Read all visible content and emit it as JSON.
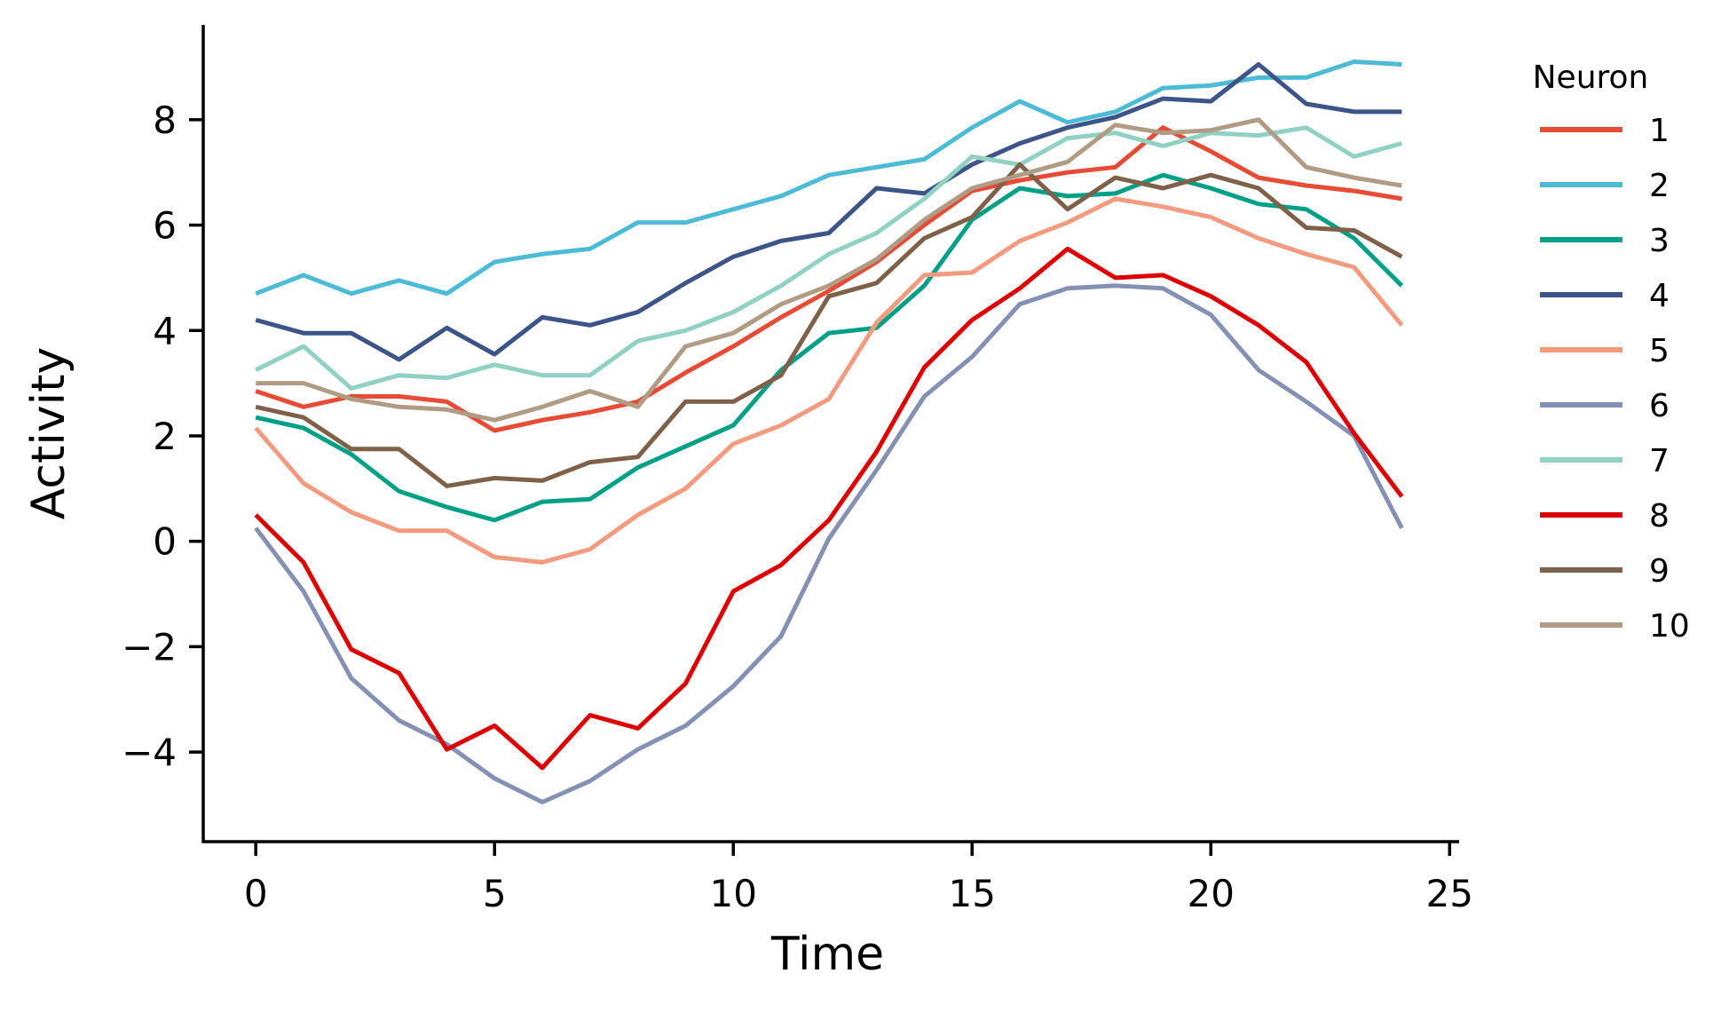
{
  "chart_data": {
    "type": "line",
    "xlabel": "Time",
    "ylabel": "Activity",
    "xlim": [
      -1.1,
      25.2
    ],
    "ylim": [
      -5.7,
      9.8
    ],
    "x_ticks": [
      0,
      5,
      10,
      15,
      20,
      25
    ],
    "x_tick_labels": [
      "0",
      "5",
      "10",
      "15",
      "20",
      "25"
    ],
    "y_ticks": [
      -4,
      -2,
      0,
      2,
      4,
      6,
      8
    ],
    "y_tick_labels": [
      "−4",
      "−2",
      "0",
      "2",
      "4",
      "6",
      "8"
    ],
    "grid": false,
    "legend": {
      "title": "Neuron",
      "placement": "outside-right"
    },
    "x": [
      0,
      1,
      2,
      3,
      4,
      5,
      6,
      7,
      8,
      9,
      10,
      11,
      12,
      13,
      14,
      15,
      16,
      17,
      18,
      19,
      20,
      21,
      22,
      23,
      24
    ],
    "series": [
      {
        "name": "1",
        "color": "#e64b35",
        "values": [
          2.85,
          2.55,
          2.75,
          2.75,
          2.65,
          2.1,
          2.3,
          2.45,
          2.65,
          3.2,
          3.7,
          4.25,
          4.75,
          5.3,
          6.0,
          6.65,
          6.85,
          7.0,
          7.1,
          7.85,
          7.4,
          6.9,
          6.75,
          6.65,
          6.5
        ]
      },
      {
        "name": "2",
        "color": "#4dbbd5",
        "values": [
          4.7,
          5.05,
          4.7,
          4.95,
          4.7,
          5.3,
          5.45,
          5.55,
          6.05,
          6.05,
          6.3,
          6.55,
          6.95,
          7.1,
          7.25,
          7.85,
          8.35,
          7.95,
          8.15,
          8.6,
          8.65,
          8.8,
          8.8,
          9.1,
          9.05
        ]
      },
      {
        "name": "3",
        "color": "#00a087",
        "values": [
          2.35,
          2.15,
          1.65,
          0.95,
          0.65,
          0.4,
          0.75,
          0.8,
          1.4,
          1.8,
          2.2,
          3.25,
          3.95,
          4.05,
          4.85,
          6.1,
          6.7,
          6.55,
          6.6,
          6.95,
          6.7,
          6.4,
          6.3,
          5.75,
          4.85
        ]
      },
      {
        "name": "4",
        "color": "#3c5488",
        "values": [
          4.2,
          3.95,
          3.95,
          3.45,
          4.05,
          3.55,
          4.25,
          4.1,
          4.35,
          4.9,
          5.4,
          5.7,
          5.85,
          6.7,
          6.6,
          7.15,
          7.55,
          7.85,
          8.05,
          8.4,
          8.35,
          9.05,
          8.3,
          8.15,
          8.15
        ]
      },
      {
        "name": "5",
        "color": "#f39b7f",
        "values": [
          2.15,
          1.1,
          0.55,
          0.2,
          0.2,
          -0.3,
          -0.4,
          -0.15,
          0.5,
          1.0,
          1.85,
          2.2,
          2.7,
          4.15,
          5.05,
          5.1,
          5.7,
          6.05,
          6.5,
          6.35,
          6.15,
          5.75,
          5.45,
          5.2,
          4.1
        ]
      },
      {
        "name": "6",
        "color": "#8491b4",
        "values": [
          0.25,
          -0.95,
          -2.6,
          -3.4,
          -3.85,
          -4.5,
          -4.95,
          -4.55,
          -3.95,
          -3.5,
          -2.75,
          -1.8,
          0.05,
          1.35,
          2.75,
          3.5,
          4.5,
          4.8,
          4.85,
          4.8,
          4.3,
          3.25,
          2.65,
          2.0,
          0.25
        ]
      },
      {
        "name": "7",
        "color": "#91d1c2",
        "values": [
          3.25,
          3.7,
          2.9,
          3.15,
          3.1,
          3.35,
          3.15,
          3.15,
          3.8,
          4.0,
          4.35,
          4.85,
          5.45,
          5.85,
          6.5,
          7.3,
          7.15,
          7.65,
          7.75,
          7.5,
          7.75,
          7.7,
          7.85,
          7.3,
          7.55
        ]
      },
      {
        "name": "8",
        "color": "#dc0000",
        "values": [
          0.5,
          -0.4,
          -2.05,
          -2.5,
          -3.95,
          -3.5,
          -4.3,
          -3.3,
          -3.55,
          -2.7,
          -0.95,
          -0.45,
          0.4,
          1.7,
          3.3,
          4.2,
          4.8,
          5.55,
          5.0,
          5.05,
          4.65,
          4.1,
          3.4,
          2.05,
          0.85
        ]
      },
      {
        "name": "9",
        "color": "#7e6148",
        "values": [
          2.55,
          2.35,
          1.75,
          1.75,
          1.05,
          1.2,
          1.15,
          1.5,
          1.6,
          2.65,
          2.65,
          3.15,
          4.65,
          4.9,
          5.75,
          6.15,
          7.15,
          6.3,
          6.9,
          6.7,
          6.95,
          6.7,
          5.95,
          5.9,
          5.4
        ]
      },
      {
        "name": "10",
        "color": "#b09c85",
        "values": [
          3.0,
          3.0,
          2.7,
          2.55,
          2.5,
          2.3,
          2.55,
          2.85,
          2.55,
          3.7,
          3.95,
          4.5,
          4.85,
          5.35,
          6.1,
          6.7,
          6.95,
          7.2,
          7.9,
          7.75,
          7.8,
          8.0,
          7.1,
          6.9,
          6.75
        ]
      }
    ]
  }
}
